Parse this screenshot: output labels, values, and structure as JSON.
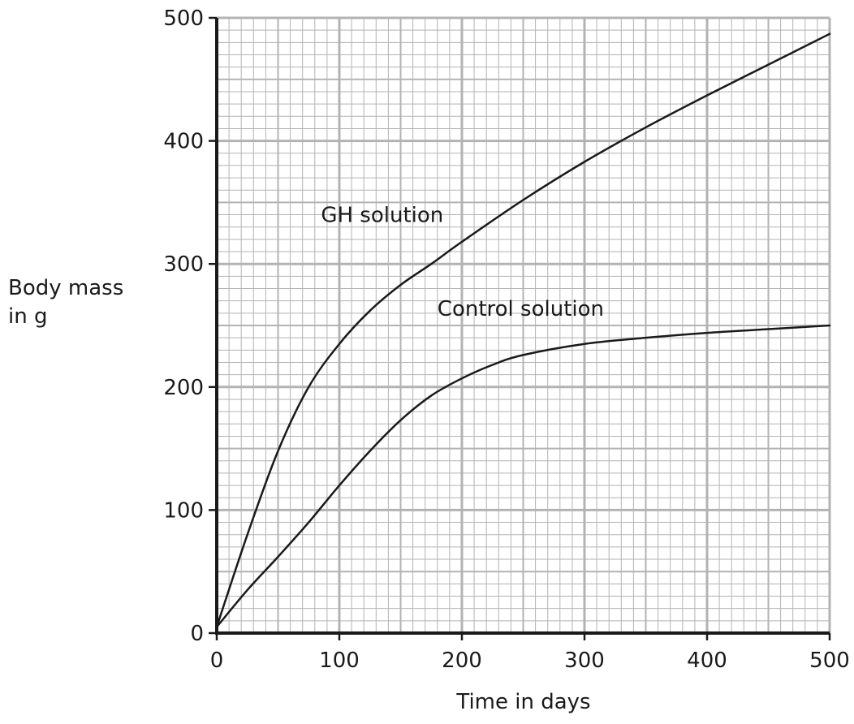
{
  "chart_data": {
    "type": "line",
    "title": "",
    "xlabel": "Time in days",
    "ylabel_lines": [
      "Body mass",
      "in g"
    ],
    "xlim": [
      0,
      500
    ],
    "ylim": [
      0,
      500
    ],
    "x_ticks": [
      0,
      100,
      200,
      300,
      400,
      500
    ],
    "y_ticks": [
      0,
      100,
      200,
      300,
      400,
      500
    ],
    "x_tick_labels": [
      "0",
      "100",
      "200",
      "300",
      "400",
      "500"
    ],
    "y_tick_labels": [
      "0",
      "100",
      "200",
      "300",
      "400",
      "500"
    ],
    "grid": true,
    "grid_minor_step": 10,
    "grid_mid_step": 50,
    "grid_major_step": 100,
    "series": [
      {
        "name": "GH solution",
        "x": [
          0,
          25,
          50,
          75,
          100,
          125,
          150,
          175,
          200,
          250,
          300,
          350,
          400,
          450,
          500
        ],
        "y": [
          5,
          80,
          148,
          200,
          235,
          262,
          283,
          300,
          318,
          352,
          383,
          411,
          437,
          462,
          487
        ]
      },
      {
        "name": "Control solution",
        "x": [
          0,
          25,
          50,
          75,
          100,
          125,
          150,
          175,
          200,
          225,
          250,
          300,
          350,
          400,
          450,
          500
        ],
        "y": [
          5,
          35,
          62,
          90,
          120,
          148,
          173,
          193,
          207,
          218,
          226,
          235,
          240,
          244,
          247,
          250
        ]
      }
    ],
    "annotations": [
      {
        "series": "GH solution",
        "text": "GH solution",
        "at_x": 85,
        "at_y": 334
      },
      {
        "series": "Control solution",
        "text": "Control solution",
        "at_x": 180,
        "at_y": 258
      }
    ],
    "colors": {
      "axis": "#1a1a1a",
      "line": "#1a1a1a",
      "grid": "#b3b3b3"
    }
  }
}
